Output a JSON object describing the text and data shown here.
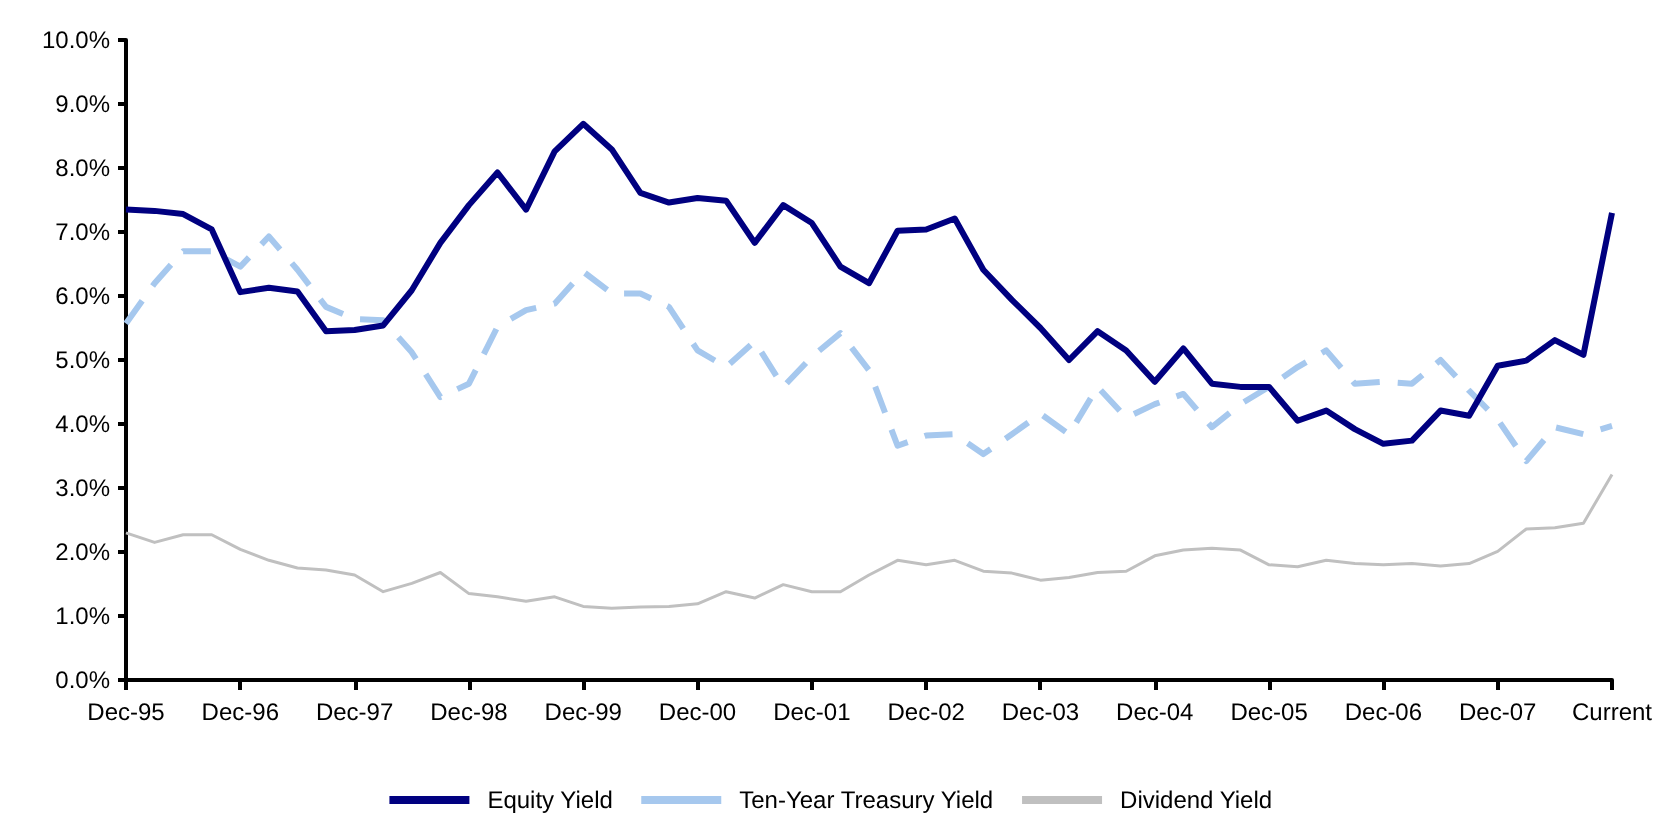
{
  "chart_data": {
    "type": "line",
    "categories": [
      "Dec-95",
      null,
      null,
      null,
      "Dec-96",
      null,
      null,
      null,
      "Dec-97",
      null,
      null,
      null,
      "Dec-98",
      null,
      null,
      null,
      "Dec-99",
      null,
      null,
      null,
      "Dec-00",
      null,
      null,
      null,
      "Dec-01",
      null,
      null,
      null,
      "Dec-02",
      null,
      null,
      null,
      "Dec-03",
      null,
      null,
      null,
      "Dec-04",
      null,
      null,
      null,
      "Dec-05",
      null,
      null,
      null,
      "Dec-06",
      null,
      null,
      null,
      "Dec-07",
      null,
      null,
      null,
      "Current"
    ],
    "series": [
      {
        "name": "Equity Yield",
        "color": "#000080",
        "line_style": "solid",
        "values": [
          7.35,
          7.33,
          7.28,
          7.04,
          6.06,
          6.13,
          6.07,
          5.45,
          5.47,
          5.54,
          6.09,
          6.83,
          7.42,
          7.93,
          7.35,
          8.26,
          8.69,
          8.29,
          7.61,
          7.46,
          7.53,
          7.49,
          6.83,
          7.42,
          7.14,
          6.46,
          6.2,
          7.02,
          7.04,
          7.21,
          6.41,
          5.94,
          5.5,
          5.0,
          5.45,
          5.15,
          4.66,
          5.18,
          4.63,
          4.58,
          4.58,
          4.05,
          4.21,
          3.92,
          3.69,
          3.74,
          4.21,
          4.13,
          4.91,
          4.99,
          5.31,
          5.08,
          7.3
        ]
      },
      {
        "name": "Ten-Year Treasury Yield",
        "color": "#a6c8ee",
        "line_style": "dashed",
        "values": [
          5.57,
          6.2,
          6.7,
          6.7,
          6.46,
          6.93,
          6.41,
          5.83,
          5.64,
          5.62,
          5.12,
          4.42,
          4.63,
          5.52,
          5.78,
          5.88,
          6.38,
          6.04,
          6.04,
          5.83,
          5.15,
          4.89,
          5.29,
          4.58,
          5.05,
          5.42,
          4.84,
          3.66,
          3.82,
          3.84,
          3.53,
          3.84,
          4.16,
          3.84,
          4.58,
          4.1,
          4.31,
          4.47,
          3.95,
          4.31,
          4.58,
          4.89,
          5.15,
          4.63,
          4.66,
          4.63,
          5.0,
          4.52,
          4.07,
          3.42,
          3.95,
          3.84,
          3.97
        ]
      },
      {
        "name": "Dividend Yield",
        "color": "#c0c0c0",
        "line_style": "solid",
        "values": [
          2.3,
          2.15,
          2.27,
          2.27,
          2.04,
          1.87,
          1.75,
          1.72,
          1.64,
          1.38,
          1.51,
          1.68,
          1.35,
          1.3,
          1.23,
          1.3,
          1.15,
          1.12,
          1.14,
          1.15,
          1.19,
          1.38,
          1.28,
          1.49,
          1.38,
          1.38,
          1.64,
          1.87,
          1.8,
          1.87,
          1.7,
          1.67,
          1.56,
          1.6,
          1.68,
          1.7,
          1.94,
          2.03,
          2.06,
          2.03,
          1.8,
          1.77,
          1.87,
          1.82,
          1.8,
          1.82,
          1.78,
          1.82,
          2.01,
          2.36,
          2.38,
          2.45,
          3.21
        ]
      }
    ],
    "ylim": [
      0,
      10
    ],
    "yticks": [
      {
        "value": 0,
        "label": "0.0%"
      },
      {
        "value": 1,
        "label": "1.0%"
      },
      {
        "value": 2,
        "label": "2.0%"
      },
      {
        "value": 3,
        "label": "3.0%"
      },
      {
        "value": 4,
        "label": "4.0%"
      },
      {
        "value": 5,
        "label": "5.0%"
      },
      {
        "value": 6,
        "label": "6.0%"
      },
      {
        "value": 7,
        "label": "7.0%"
      },
      {
        "value": 8,
        "label": "8.0%"
      },
      {
        "value": 9,
        "label": "9.0%"
      },
      {
        "value": 10,
        "label": "10.0%"
      }
    ],
    "grid": false,
    "legend": "bottom",
    "marker": "none"
  }
}
